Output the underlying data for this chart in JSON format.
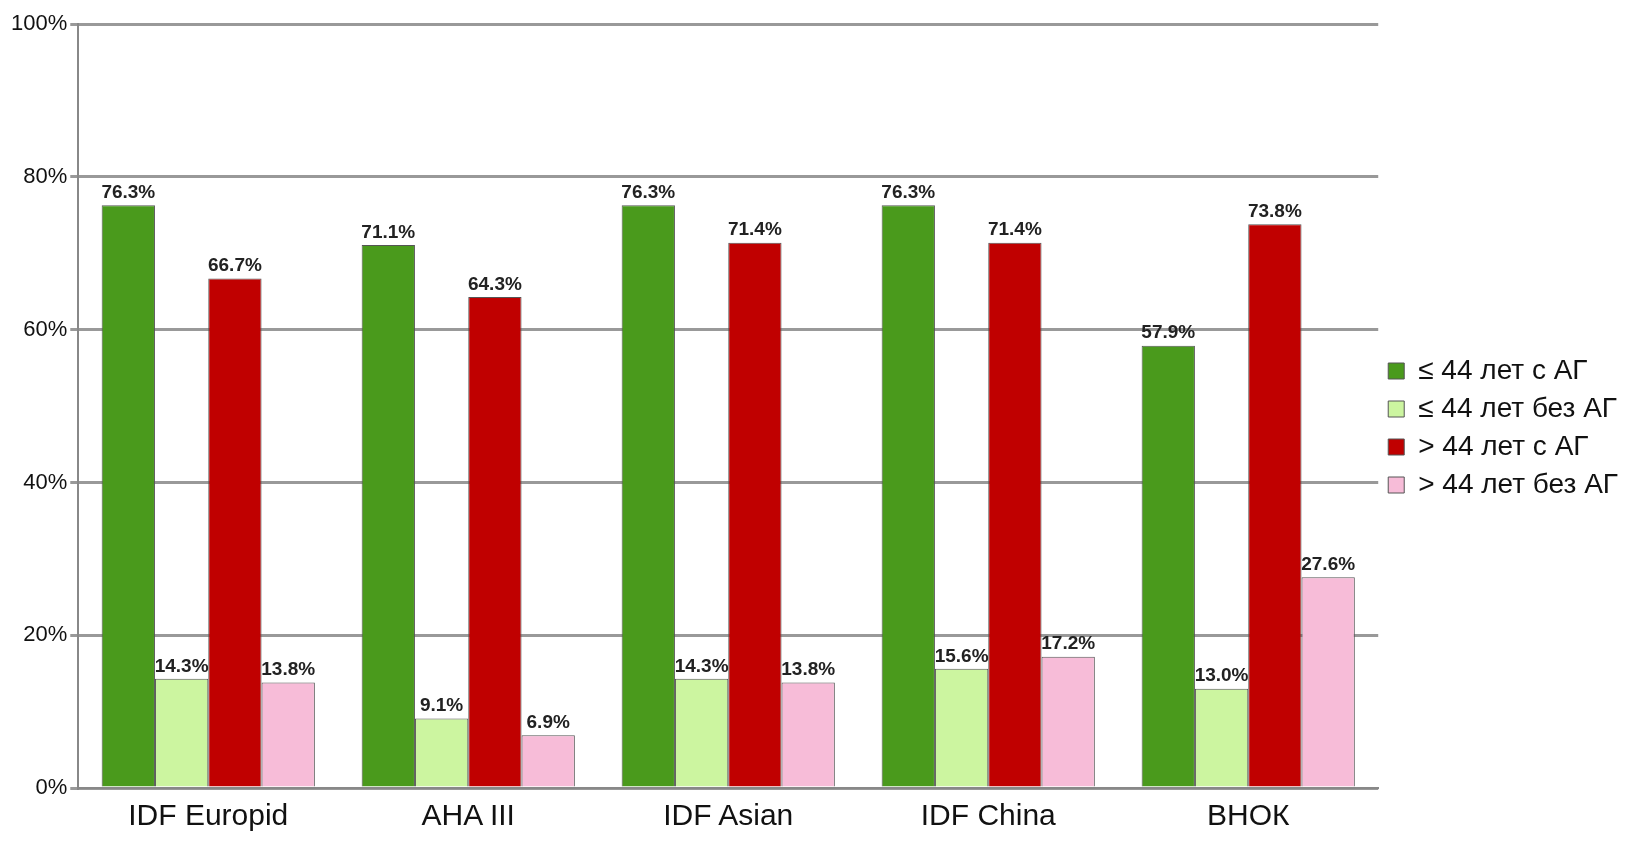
{
  "chart_data": {
    "type": "bar",
    "categories": [
      "IDF Europid",
      "AHA III",
      "IDF Asian",
      "IDF China",
      "ВНОК"
    ],
    "series": [
      {
        "name": "≤ 44 лет с АГ",
        "color": "#4a9a1c",
        "values": [
          76.3,
          71.1,
          76.3,
          76.3,
          57.9
        ],
        "value_labels": [
          "76.3%",
          "71.1%",
          "76.3%",
          "76.3%",
          "57.9%"
        ]
      },
      {
        "name": "≤ 44 лет без АГ",
        "color": "#ccf5a0",
        "values": [
          14.3,
          9.1,
          14.3,
          15.6,
          13.0
        ],
        "value_labels": [
          "14.3%",
          "9.1%",
          "14.3%",
          "15.6%",
          "13.0%"
        ]
      },
      {
        "name": "> 44 лет с АГ",
        "color": "#c00000",
        "values": [
          66.7,
          64.3,
          71.4,
          71.4,
          73.8
        ],
        "value_labels": [
          "66.7%",
          "64.3%",
          "71.4%",
          "71.4%",
          "73.8%"
        ]
      },
      {
        "name": "> 44 лет без АГ",
        "color": "#f7bcd8",
        "values": [
          13.8,
          6.9,
          13.8,
          17.2,
          27.6
        ],
        "value_labels": [
          "13.8%",
          "6.9%",
          "13.8%",
          "17.2%",
          "27.6%"
        ]
      }
    ],
    "ylim": [
      0,
      100
    ],
    "yticks": [
      {
        "value": 0,
        "label": "0%"
      },
      {
        "value": 20,
        "label": "20%"
      },
      {
        "value": 40,
        "label": "40%"
      },
      {
        "value": 60,
        "label": "60%"
      },
      {
        "value": 80,
        "label": "80%"
      },
      {
        "value": 100,
        "label": "100%"
      }
    ],
    "grid": "y",
    "legend": "right"
  }
}
